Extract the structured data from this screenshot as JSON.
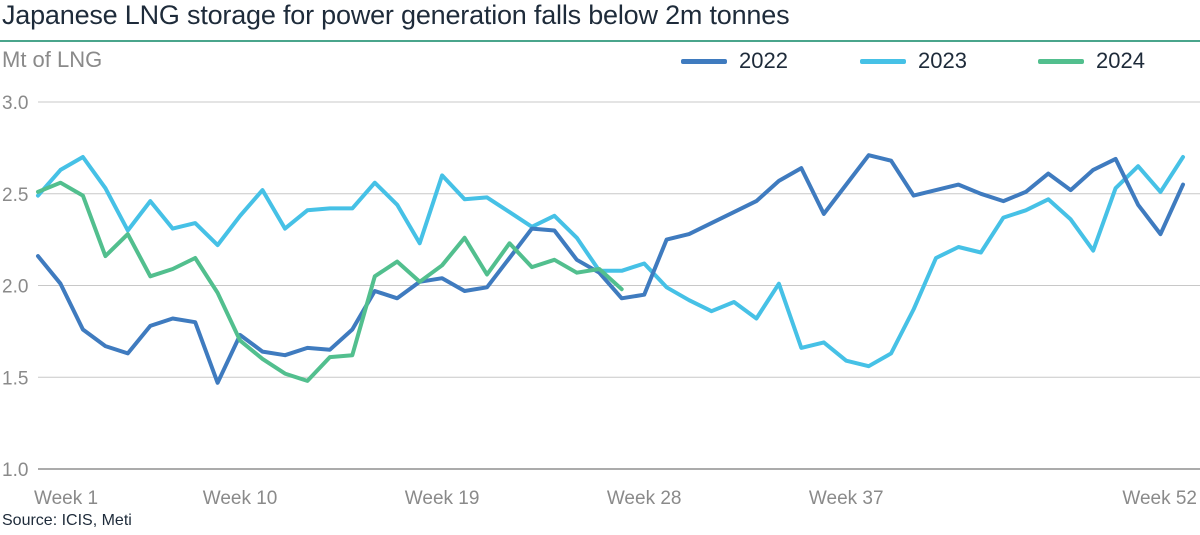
{
  "title": "Japanese LNG storage for power generation falls below 2m tonnes",
  "source": "Source: ICIS, Meti",
  "colors": {
    "s2022": "#3f7bbf",
    "s2023": "#46c1e6",
    "s2024": "#52bf8e",
    "grid": "#c8c8c8",
    "rule": "#4aa58c"
  },
  "chart_data": {
    "type": "line",
    "title": "Japanese LNG storage for power generation falls below 2m tonnes",
    "ylabel": "Mt of LNG",
    "xlabel": "",
    "ylim": [
      1.0,
      3.0
    ],
    "yticks": [
      "1.0",
      "1.5",
      "2.0",
      "2.5",
      "3.0"
    ],
    "xticks": [
      {
        "week": 1,
        "label": "Week 1"
      },
      {
        "week": 10,
        "label": "Week 10"
      },
      {
        "week": 19,
        "label": "Week 19"
      },
      {
        "week": 28,
        "label": "Week 28"
      },
      {
        "week": 37,
        "label": "Week 37"
      },
      {
        "week": 52,
        "label": "Week 52"
      }
    ],
    "grid": true,
    "legend": "top-right",
    "series": [
      {
        "name": "2022",
        "values": [
          2.16,
          2.01,
          1.76,
          1.67,
          1.63,
          1.78,
          1.82,
          1.8,
          1.47,
          1.73,
          1.64,
          1.62,
          1.66,
          1.65,
          1.76,
          1.97,
          1.93,
          2.02,
          2.04,
          1.97,
          1.99,
          2.15,
          2.31,
          2.3,
          2.14,
          2.07,
          1.93,
          1.95,
          2.25,
          2.28,
          2.34,
          2.4,
          2.46,
          2.57,
          2.64,
          2.39,
          2.55,
          2.71,
          2.68,
          2.49,
          2.52,
          2.55,
          2.5,
          2.46,
          2.51,
          2.61,
          2.52,
          2.63,
          2.69,
          2.44,
          2.28,
          2.55
        ]
      },
      {
        "name": "2023",
        "values": [
          2.49,
          2.63,
          2.7,
          2.53,
          2.3,
          2.46,
          2.31,
          2.34,
          2.22,
          2.38,
          2.52,
          2.31,
          2.41,
          2.42,
          2.42,
          2.56,
          2.44,
          2.23,
          2.6,
          2.47,
          2.48,
          2.4,
          2.32,
          2.38,
          2.26,
          2.08,
          2.08,
          2.12,
          1.99,
          1.92,
          1.86,
          1.91,
          1.82,
          2.01,
          1.66,
          1.69,
          1.59,
          1.56,
          1.63,
          1.87,
          2.15,
          2.21,
          2.18,
          2.37,
          2.41,
          2.47,
          2.36,
          2.19,
          2.53,
          2.65,
          2.51,
          2.7
        ]
      },
      {
        "name": "2024",
        "values": [
          2.51,
          2.56,
          2.49,
          2.16,
          2.28,
          2.05,
          2.09,
          2.15,
          1.96,
          1.7,
          1.6,
          1.52,
          1.48,
          1.61,
          1.62,
          2.05,
          2.13,
          2.02,
          2.11,
          2.26,
          2.06,
          2.23,
          2.1,
          2.14,
          2.07,
          2.09,
          1.98
        ]
      }
    ]
  }
}
